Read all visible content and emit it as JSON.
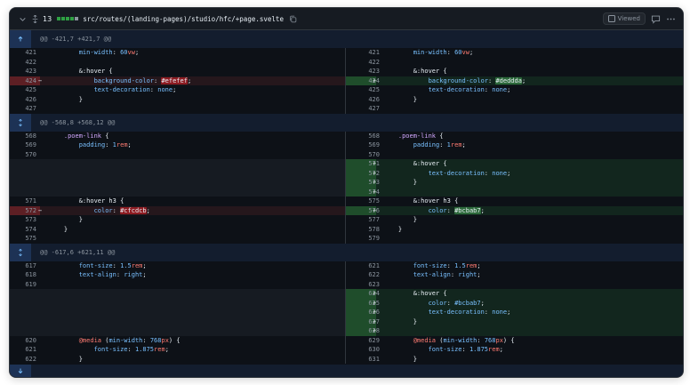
{
  "header": {
    "changes_count": "13",
    "file_path": "src/routes/(landing-pages)/studio/hfc/+page.svelte",
    "viewed_label": "Viewed",
    "diffstat": [
      "add",
      "add",
      "add",
      "add",
      "neutral"
    ]
  },
  "hunks": [
    {
      "header": "@@ -421,7 +421,7 @@",
      "rows": [
        {
          "l": "421",
          "r": "421",
          "type": "ctx",
          "tokens": [
            [
              "t",
              "        "
            ],
            [
              "p",
              "min-width"
            ],
            [
              "t",
              ": "
            ],
            [
              "n",
              "60"
            ],
            [
              "k",
              "vw"
            ],
            [
              "t",
              ";"
            ]
          ]
        },
        {
          "l": "422",
          "r": "422",
          "type": "ctx",
          "tokens": []
        },
        {
          "l": "423",
          "r": "423",
          "type": "ctx",
          "tokens": [
            [
              "t",
              "        &:hover {"
            ]
          ]
        },
        {
          "l": "424",
          "r": "424",
          "type": "chg",
          "left": [
            [
              "t",
              "            "
            ],
            [
              "p",
              "background-color"
            ],
            [
              "t",
              ": "
            ],
            [
              "hd",
              "#efefef"
            ],
            [
              "t",
              ";"
            ]
          ],
          "right": [
            [
              "t",
              "            "
            ],
            [
              "p",
              "background-color"
            ],
            [
              "t",
              ": "
            ],
            [
              "ha",
              "#dedddа"
            ],
            [
              "t",
              ";"
            ]
          ]
        },
        {
          "l": "425",
          "r": "425",
          "type": "ctx",
          "tokens": [
            [
              "t",
              "            "
            ],
            [
              "p",
              "text-decoration"
            ],
            [
              "t",
              ": "
            ],
            [
              "p",
              "none"
            ],
            [
              "t",
              ";"
            ]
          ]
        },
        {
          "l": "426",
          "r": "426",
          "type": "ctx",
          "tokens": [
            [
              "t",
              "        }"
            ]
          ]
        },
        {
          "l": "427",
          "r": "427",
          "type": "ctx",
          "tokens": []
        }
      ]
    },
    {
      "header": "@@ -568,8 +568,12 @@",
      "rows": [
        {
          "l": "568",
          "r": "568",
          "type": "ctx",
          "tokens": [
            [
              "t",
              "    "
            ],
            [
              "s",
              ".poem-link"
            ],
            [
              "t",
              " {"
            ]
          ]
        },
        {
          "l": "569",
          "r": "569",
          "type": "ctx",
          "tokens": [
            [
              "t",
              "        "
            ],
            [
              "p",
              "padding"
            ],
            [
              "t",
              ": "
            ],
            [
              "n",
              "1"
            ],
            [
              "k",
              "rem"
            ],
            [
              "t",
              ";"
            ]
          ]
        },
        {
          "l": "570",
          "r": "570",
          "type": "ctx",
          "tokens": []
        },
        {
          "l": "",
          "r": "571",
          "type": "add",
          "tokens": [
            [
              "t",
              "        &:hover {"
            ]
          ]
        },
        {
          "l": "",
          "r": "572",
          "type": "add",
          "tokens": [
            [
              "t",
              "            "
            ],
            [
              "p",
              "text-decoration"
            ],
            [
              "t",
              ": "
            ],
            [
              "p",
              "none"
            ],
            [
              "t",
              ";"
            ]
          ]
        },
        {
          "l": "",
          "r": "573",
          "type": "add",
          "tokens": [
            [
              "t",
              "        }"
            ]
          ]
        },
        {
          "l": "",
          "r": "574",
          "type": "add",
          "tokens": []
        },
        {
          "l": "571",
          "r": "575",
          "type": "ctx",
          "tokens": [
            [
              "t",
              "        &:hover h3 {"
            ]
          ]
        },
        {
          "l": "572",
          "r": "576",
          "type": "chg",
          "left": [
            [
              "t",
              "            "
            ],
            [
              "p",
              "color"
            ],
            [
              "t",
              ": "
            ],
            [
              "hd",
              "#cfcdcb"
            ],
            [
              "t",
              ";"
            ]
          ],
          "right": [
            [
              "t",
              "            "
            ],
            [
              "p",
              "color"
            ],
            [
              "t",
              ": "
            ],
            [
              "ha",
              "#bcbab7"
            ],
            [
              "t",
              ";"
            ]
          ]
        },
        {
          "l": "573",
          "r": "577",
          "type": "ctx",
          "tokens": [
            [
              "t",
              "        }"
            ]
          ]
        },
        {
          "l": "574",
          "r": "578",
          "type": "ctx",
          "tokens": [
            [
              "t",
              "    }"
            ]
          ]
        },
        {
          "l": "575",
          "r": "579",
          "type": "ctx",
          "tokens": []
        }
      ]
    },
    {
      "header": "@@ -617,6 +621,11 @@",
      "rows": [
        {
          "l": "617",
          "r": "621",
          "type": "ctx",
          "tokens": [
            [
              "t",
              "        "
            ],
            [
              "p",
              "font-size"
            ],
            [
              "t",
              ": "
            ],
            [
              "n",
              "1.5"
            ],
            [
              "k",
              "rem"
            ],
            [
              "t",
              ";"
            ]
          ]
        },
        {
          "l": "618",
          "r": "622",
          "type": "ctx",
          "tokens": [
            [
              "t",
              "        "
            ],
            [
              "p",
              "text-align"
            ],
            [
              "t",
              ": "
            ],
            [
              "p",
              "right"
            ],
            [
              "t",
              ";"
            ]
          ]
        },
        {
          "l": "619",
          "r": "623",
          "type": "ctx",
          "tokens": []
        },
        {
          "l": "",
          "r": "624",
          "type": "add",
          "tokens": [
            [
              "t",
              "        &:hover {"
            ]
          ]
        },
        {
          "l": "",
          "r": "625",
          "type": "add",
          "tokens": [
            [
              "t",
              "            "
            ],
            [
              "p",
              "color"
            ],
            [
              "t",
              ": "
            ],
            [
              "p",
              "#bcbab7"
            ],
            [
              "t",
              ";"
            ]
          ]
        },
        {
          "l": "",
          "r": "626",
          "type": "add",
          "tokens": [
            [
              "t",
              "            "
            ],
            [
              "p",
              "text-decoration"
            ],
            [
              "t",
              ": "
            ],
            [
              "p",
              "none"
            ],
            [
              "t",
              ";"
            ]
          ]
        },
        {
          "l": "",
          "r": "627",
          "type": "add",
          "tokens": [
            [
              "t",
              "        }"
            ]
          ]
        },
        {
          "l": "",
          "r": "628",
          "type": "add",
          "tokens": []
        },
        {
          "l": "620",
          "r": "629",
          "type": "ctx",
          "tokens": [
            [
              "t",
              "        "
            ],
            [
              "k",
              "@media"
            ],
            [
              "t",
              " ("
            ],
            [
              "p",
              "min-width"
            ],
            [
              "t",
              ": "
            ],
            [
              "n",
              "768"
            ],
            [
              "k",
              "px"
            ],
            [
              "t",
              ") {"
            ]
          ]
        },
        {
          "l": "621",
          "r": "630",
          "type": "ctx",
          "tokens": [
            [
              "t",
              "            "
            ],
            [
              "p",
              "font-size"
            ],
            [
              "t",
              ": "
            ],
            [
              "n",
              "1.875"
            ],
            [
              "k",
              "rem"
            ],
            [
              "t",
              ";"
            ]
          ]
        },
        {
          "l": "622",
          "r": "631",
          "type": "ctx",
          "tokens": [
            [
              "t",
              "        }"
            ]
          ]
        }
      ]
    }
  ],
  "colors": {
    "addition": "#2ea043",
    "deletion": "#f85149",
    "accent": "#79c0ff"
  }
}
